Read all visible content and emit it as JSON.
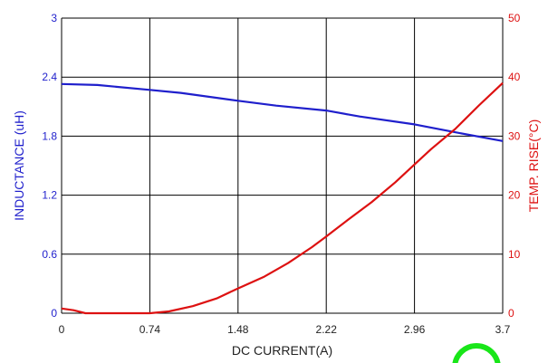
{
  "chart_data": {
    "type": "line",
    "xlabel": "DC CURRENT(A)",
    "y_left_label": "INDUCTANCE (uH)",
    "y_right_label": "TEMP. RISE(°C)",
    "x_ticks": [
      "0",
      "0.74",
      "1.48",
      "2.22",
      "2.96",
      "3.7"
    ],
    "y_left_ticks": [
      "0",
      "0.6",
      "1.2",
      "1.8",
      "2.4",
      "3"
    ],
    "y_right_ticks": [
      "0",
      "10",
      "20",
      "30",
      "40",
      "50"
    ],
    "xlim": [
      0,
      3.7
    ],
    "y_left_lim": [
      0,
      3
    ],
    "y_right_lim": [
      0,
      50
    ],
    "grid": true,
    "colors": {
      "inductance": "#1f1fcc",
      "temperature": "#dd1111",
      "grid": "#000000"
    },
    "series": [
      {
        "axis": "left",
        "x": [
          0,
          0.3,
          0.74,
          1.0,
          1.48,
          1.8,
          2.22,
          2.5,
          2.96,
          3.3,
          3.7
        ],
        "values": [
          2.33,
          2.32,
          2.27,
          2.24,
          2.16,
          2.11,
          2.06,
          2.0,
          1.92,
          1.84,
          1.75
        ]
      },
      {
        "axis": "right",
        "x": [
          0,
          0.1,
          0.2,
          0.3,
          0.5,
          0.74,
          0.9,
          1.1,
          1.3,
          1.48,
          1.7,
          1.9,
          2.1,
          2.22,
          2.4,
          2.6,
          2.8,
          2.96,
          3.1,
          3.3,
          3.5,
          3.7
        ],
        "values": [
          0.8,
          0.5,
          0,
          0,
          0,
          0,
          0.3,
          1.2,
          2.5,
          4.2,
          6.2,
          8.5,
          11.2,
          13,
          15.8,
          18.8,
          22.2,
          25.2,
          27.8,
          31.2,
          35.2,
          39
        ]
      }
    ]
  }
}
